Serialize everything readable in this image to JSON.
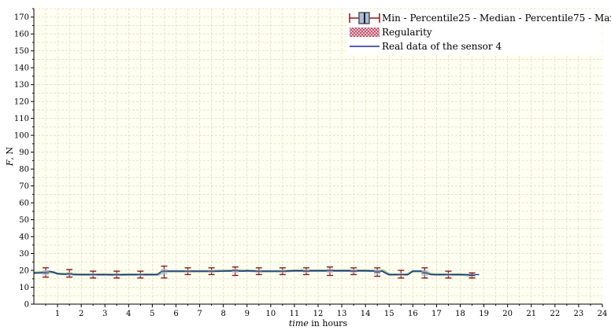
{
  "chart_data": {
    "type": "line",
    "title": "",
    "xlabel_italic": "time",
    "xlabel_rest": " in hours",
    "ylabel_italic": "F",
    "ylabel_rest": ", N",
    "xlim": [
      0,
      24
    ],
    "ylim": [
      0,
      175
    ],
    "x_ticks": [
      1,
      2,
      3,
      4,
      5,
      6,
      7,
      8,
      9,
      10,
      11,
      12,
      13,
      14,
      15,
      16,
      17,
      18,
      19,
      20,
      21,
      22,
      23,
      24
    ],
    "y_ticks": [
      0,
      10,
      20,
      30,
      40,
      50,
      60,
      70,
      80,
      90,
      100,
      110,
      120,
      130,
      140,
      150,
      160,
      170
    ],
    "grid": true,
    "legend_position": "top-right",
    "legend": [
      {
        "label": "Min - Percentile25 - Median - Percentile75 - Max",
        "symbol": "boxplot"
      },
      {
        "label": "Regularity",
        "symbol": "hatched"
      },
      {
        "label": "Real data of the sensor 4",
        "symbol": "line"
      }
    ],
    "colors": {
      "plot_background": "#fffff2",
      "grid": "#d6d6b4",
      "boxplot_whisker": "#8b1a1a",
      "boxplot_fill": "#a9bedd",
      "regularity_fill": "#e8a8b8",
      "sensor_line": "#1f2a9a",
      "regularity_band": "#6aa84f"
    },
    "boxplots": [
      {
        "x": 0.5,
        "min": 16.0,
        "q1": 17.0,
        "median": 18.5,
        "q3": 20.0,
        "max": 21.5
      },
      {
        "x": 1.5,
        "min": 16.0,
        "q1": 17.0,
        "median": 18.0,
        "q3": 19.0,
        "max": 20.5
      },
      {
        "x": 2.5,
        "min": 15.5,
        "q1": 16.5,
        "median": 17.5,
        "q3": 18.5,
        "max": 19.5
      },
      {
        "x": 3.5,
        "min": 15.5,
        "q1": 16.5,
        "median": 17.5,
        "q3": 18.5,
        "max": 19.5
      },
      {
        "x": 4.5,
        "min": 15.5,
        "q1": 16.5,
        "median": 17.5,
        "q3": 18.5,
        "max": 19.5
      },
      {
        "x": 5.5,
        "min": 15.5,
        "q1": 17.5,
        "median": 19.5,
        "q3": 21.0,
        "max": 22.5
      },
      {
        "x": 6.5,
        "min": 17.5,
        "q1": 18.5,
        "median": 19.5,
        "q3": 20.5,
        "max": 21.5
      },
      {
        "x": 7.5,
        "min": 17.5,
        "q1": 18.5,
        "median": 19.5,
        "q3": 20.5,
        "max": 21.5
      },
      {
        "x": 8.5,
        "min": 17.0,
        "q1": 18.5,
        "median": 20.0,
        "q3": 21.0,
        "max": 22.0
      },
      {
        "x": 9.5,
        "min": 17.5,
        "q1": 18.5,
        "median": 19.5,
        "q3": 20.5,
        "max": 21.5
      },
      {
        "x": 10.5,
        "min": 17.5,
        "q1": 18.5,
        "median": 19.5,
        "q3": 20.5,
        "max": 21.5
      },
      {
        "x": 11.5,
        "min": 17.5,
        "q1": 18.5,
        "median": 19.5,
        "q3": 20.5,
        "max": 21.5
      },
      {
        "x": 12.5,
        "min": 17.0,
        "q1": 18.5,
        "median": 20.0,
        "q3": 21.0,
        "max": 22.0
      },
      {
        "x": 13.5,
        "min": 17.5,
        "q1": 18.5,
        "median": 19.5,
        "q3": 20.5,
        "max": 21.5
      },
      {
        "x": 14.5,
        "min": 16.5,
        "q1": 17.5,
        "median": 19.0,
        "q3": 20.5,
        "max": 21.5
      },
      {
        "x": 15.5,
        "min": 15.5,
        "q1": 16.5,
        "median": 17.5,
        "q3": 18.5,
        "max": 20.0
      },
      {
        "x": 16.5,
        "min": 15.5,
        "q1": 16.5,
        "median": 18.5,
        "q3": 20.0,
        "max": 21.5
      },
      {
        "x": 17.5,
        "min": 15.5,
        "q1": 16.5,
        "median": 17.5,
        "q3": 18.5,
        "max": 19.5
      },
      {
        "x": 18.5,
        "min": 15.5,
        "q1": 16.0,
        "median": 17.0,
        "q3": 17.5,
        "max": 18.5
      }
    ],
    "regularity": {
      "x": [
        0,
        0.5,
        0.8,
        1,
        1.5,
        2,
        2.5,
        3,
        3.5,
        4,
        4.5,
        5,
        5.25,
        5.5,
        6,
        6.5,
        7,
        7.5,
        8,
        8.5,
        9,
        9.5,
        10,
        10.5,
        11,
        11.5,
        12,
        12.5,
        13,
        13.5,
        14,
        14.5,
        14.75,
        15,
        15.5,
        15.75,
        16,
        16.5,
        16.75,
        17,
        17.5,
        18,
        18.5
      ],
      "y": [
        18.5,
        19.0,
        19.0,
        18.0,
        17.8,
        17.5,
        17.5,
        17.5,
        17.5,
        17.5,
        17.5,
        17.5,
        17.5,
        19.5,
        19.5,
        19.5,
        19.5,
        19.5,
        19.8,
        19.8,
        19.8,
        19.5,
        19.5,
        19.5,
        19.8,
        19.8,
        19.8,
        19.8,
        19.8,
        19.8,
        19.8,
        19.8,
        19.8,
        17.5,
        17.5,
        17.5,
        19.5,
        19.5,
        17.8,
        17.5,
        17.5,
        17.5,
        17.0
      ]
    },
    "sensor_series": {
      "name": "Real data of the sensor 4",
      "x": [
        0,
        0.3,
        0.6,
        0.8,
        1.0,
        1.5,
        2.0,
        2.5,
        3.0,
        3.5,
        4.0,
        4.5,
        5.0,
        5.2,
        5.4,
        5.6,
        6.0,
        6.5,
        7.0,
        7.5,
        8.0,
        8.5,
        8.8,
        9.0,
        9.5,
        10.0,
        10.5,
        11.0,
        11.5,
        12.0,
        12.5,
        13.0,
        13.5,
        14.0,
        14.5,
        14.7,
        14.9,
        15.0,
        15.5,
        15.8,
        16.0,
        16.4,
        16.6,
        16.8,
        17.0,
        17.5,
        18.0,
        18.5,
        18.8
      ],
      "y": [
        18.5,
        18.5,
        19.5,
        19.0,
        18.0,
        17.5,
        17.5,
        17.5,
        17.5,
        17.3,
        17.5,
        17.5,
        17.5,
        17.5,
        19.5,
        19.5,
        19.5,
        19.5,
        19.5,
        19.5,
        19.5,
        19.8,
        19.5,
        19.8,
        19.5,
        19.5,
        19.5,
        19.8,
        19.8,
        19.8,
        19.8,
        19.8,
        19.8,
        19.8,
        19.5,
        19.5,
        18.0,
        17.5,
        17.5,
        17.5,
        19.5,
        19.5,
        18.0,
        17.5,
        17.5,
        17.5,
        17.5,
        17.5,
        17.5
      ]
    }
  }
}
